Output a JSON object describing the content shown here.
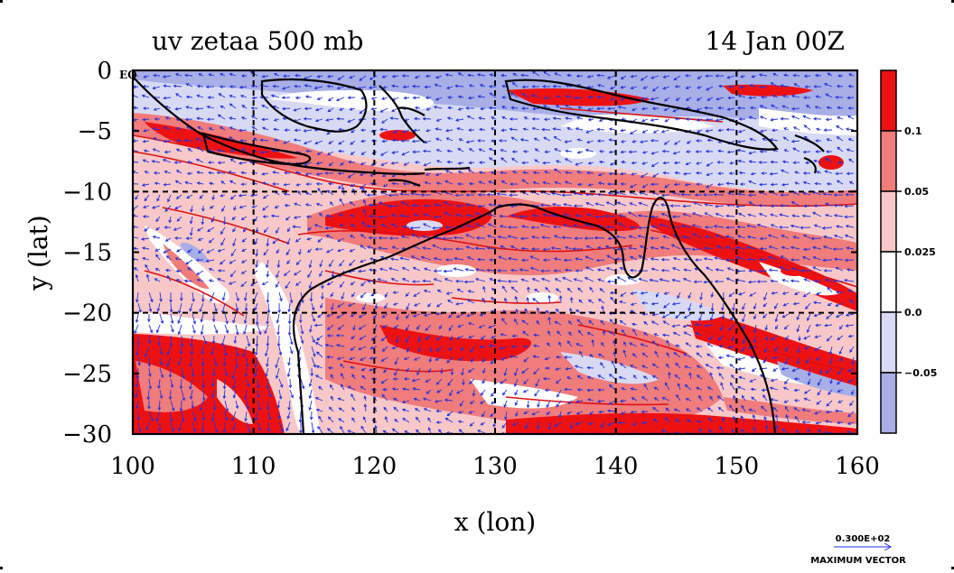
{
  "map": {
    "title": "uv zetaa 500 mb",
    "date_label": "14 Jan 00Z",
    "x_axis_label": "x (lon)",
    "y_axis_label": "y (lat)",
    "eq_label": "EQ",
    "lon_range": [
      100,
      160
    ],
    "lat_range": [
      -30,
      0
    ],
    "x_ticks": [
      {
        "value": 100,
        "label": "100"
      },
      {
        "value": 110,
        "label": "110"
      },
      {
        "value": 120,
        "label": "120"
      },
      {
        "value": 130,
        "label": "130"
      },
      {
        "value": 140,
        "label": "140"
      },
      {
        "value": 150,
        "label": "150"
      },
      {
        "value": 160,
        "label": "160"
      }
    ],
    "y_ticks": [
      {
        "value": 0,
        "label": "0"
      },
      {
        "value": -5,
        "label": "−5"
      },
      {
        "value": -10,
        "label": "−10"
      },
      {
        "value": -15,
        "label": "−15"
      },
      {
        "value": -20,
        "label": "−20"
      },
      {
        "value": -25,
        "label": "−25"
      },
      {
        "value": -30,
        "label": "−30"
      }
    ],
    "grid_lines_lon": [
      110,
      120,
      130,
      140,
      150
    ],
    "grid_lines_lat": [
      -10,
      -20
    ]
  },
  "colorbar": {
    "labels": [
      {
        "value": 0.1,
        "label": "0.1"
      },
      {
        "value": 0.05,
        "label": "0.05"
      },
      {
        "value": 0.025,
        "label": "0.025"
      },
      {
        "value": 0.0,
        "label": "0.0"
      },
      {
        "value": -0.05,
        "label": "−0.05"
      }
    ],
    "colors": [
      "#ee1111",
      "#f07c7c",
      "#f8c8c8",
      "#ffffff",
      "#d8daf4",
      "#a8aee6"
    ]
  },
  "vector_legend": {
    "magnitude_label": "0.300E+02",
    "caption": "MAXIMUM VECTOR"
  },
  "colors": {
    "vector": "#2233dd",
    "contour": "#dd1111",
    "coast": "#000000"
  }
}
